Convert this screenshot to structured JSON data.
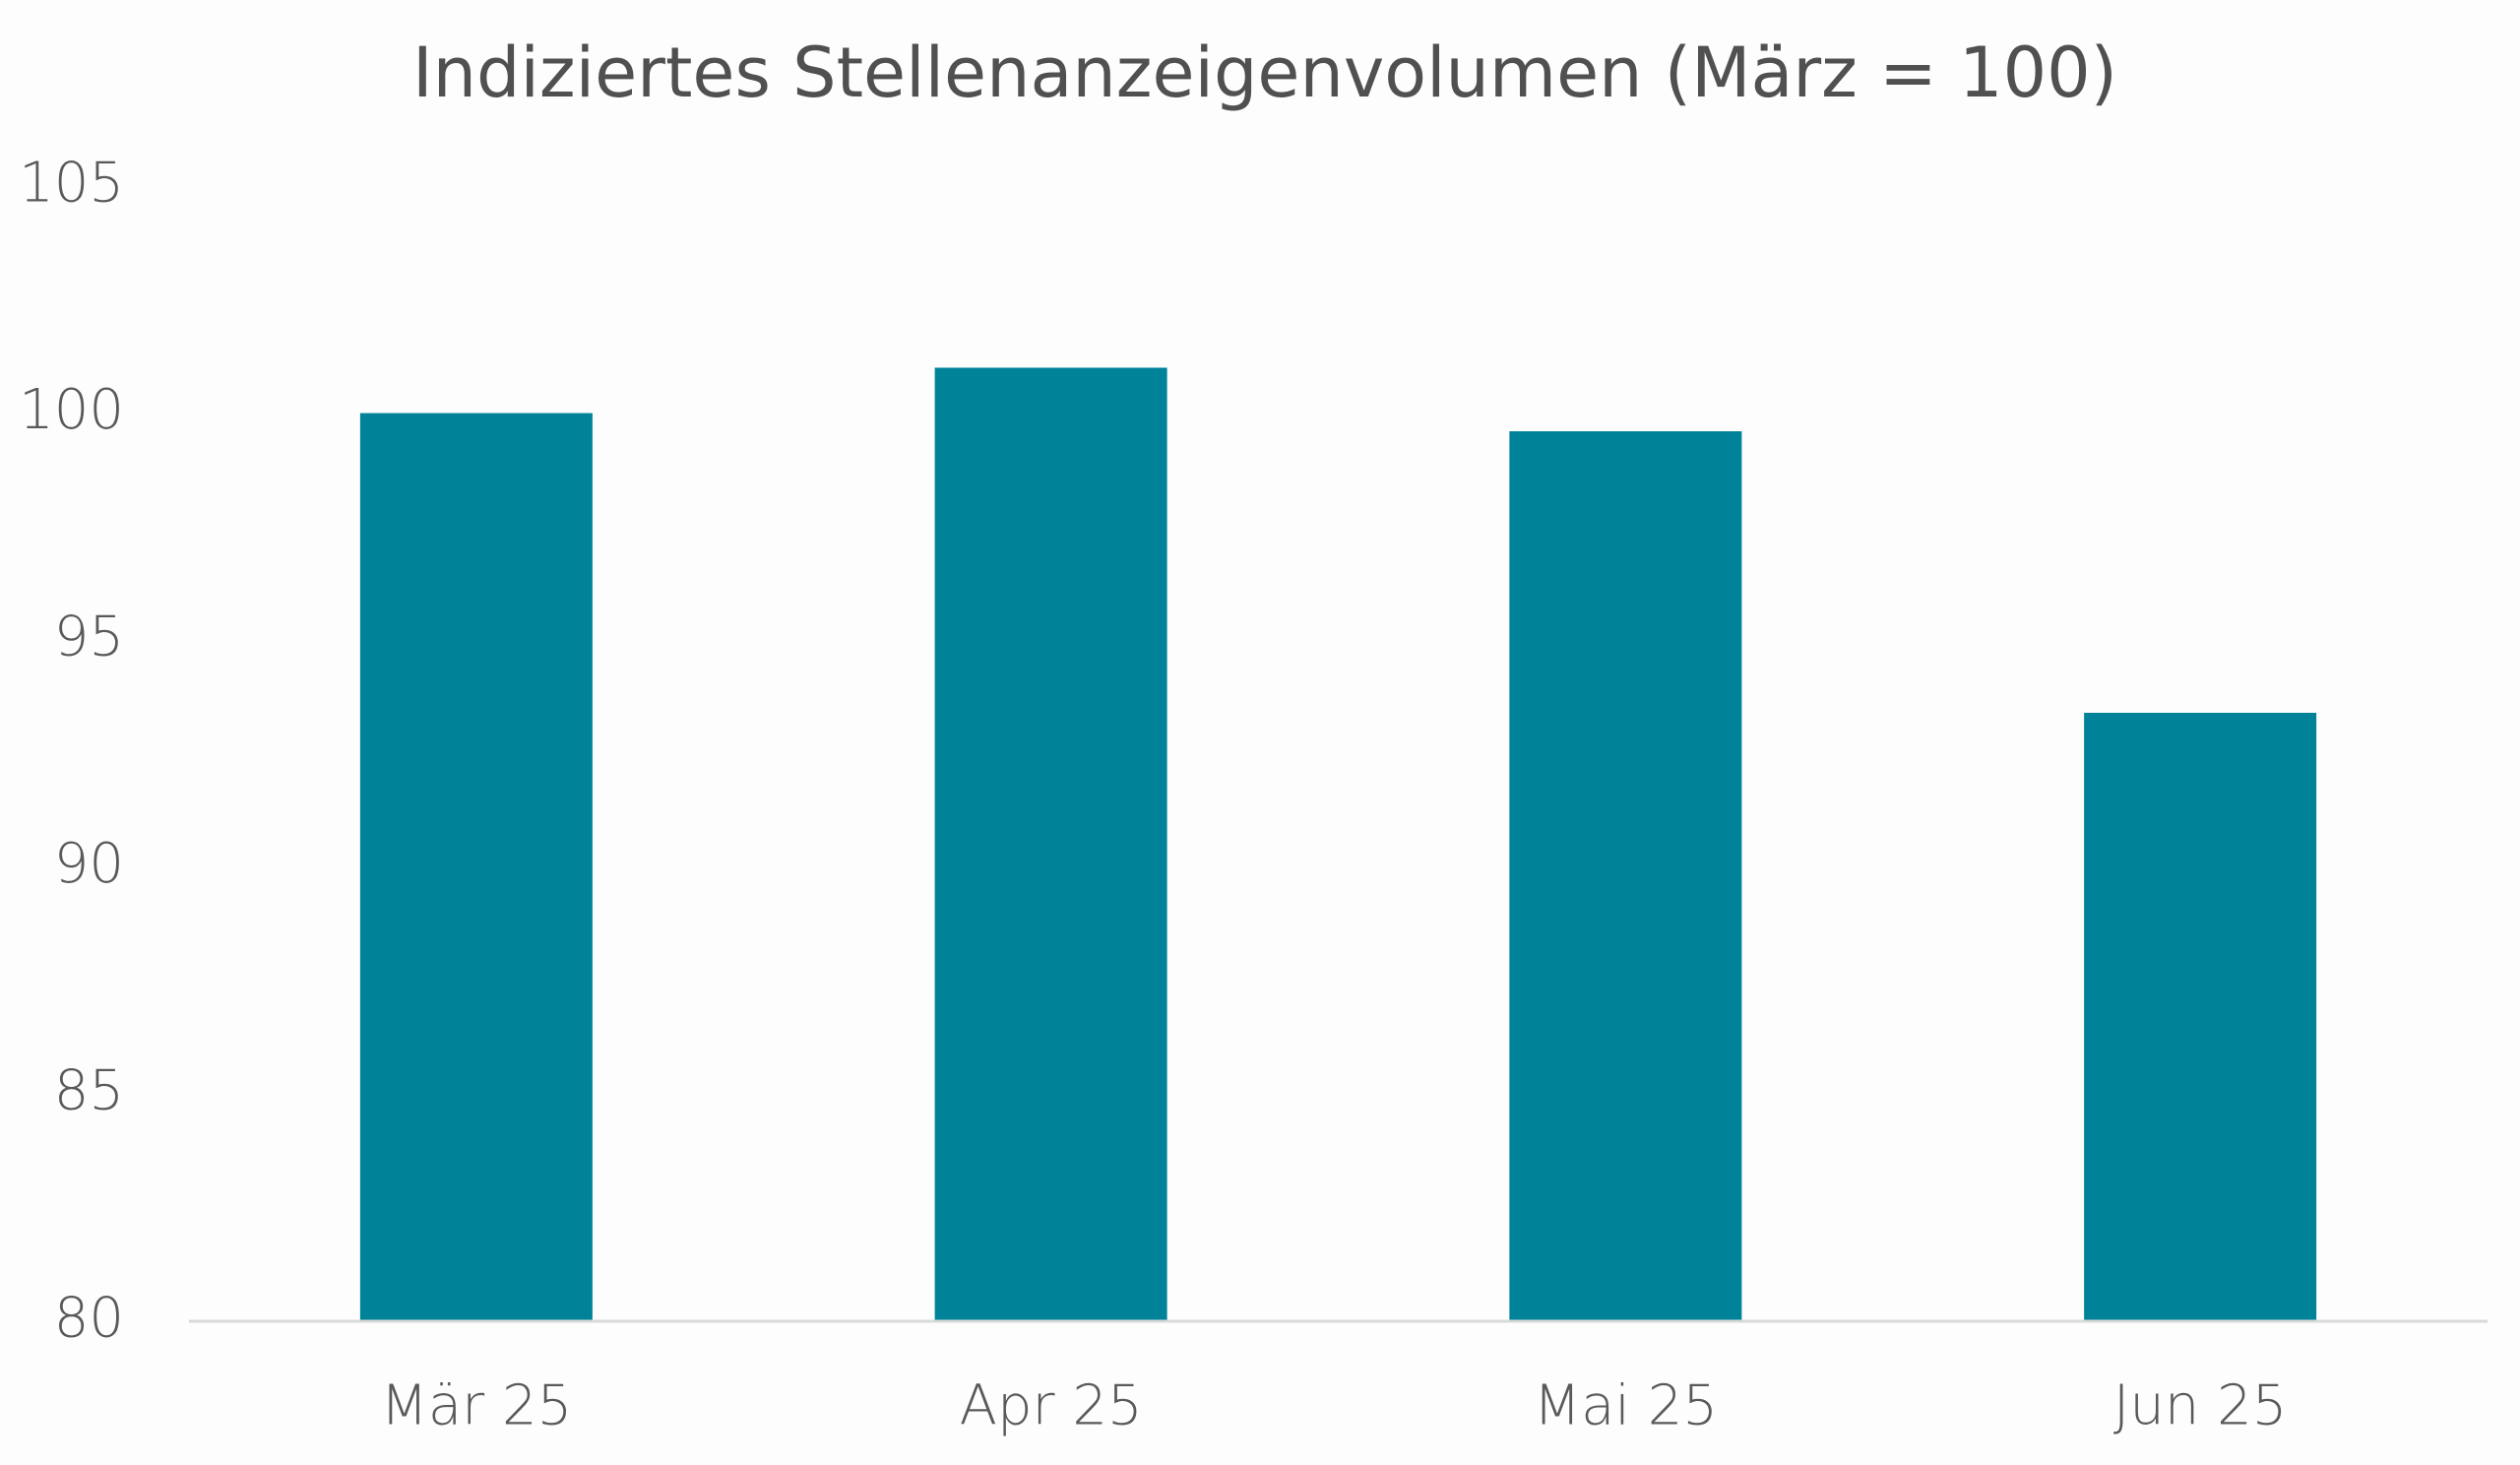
{
  "chart_data": {
    "type": "bar",
    "title": "Indiziertes Stellenanzeigenvolumen (März = 100)",
    "categories": [
      "Mär 25",
      "Apr 25",
      "Mai 25",
      "Jun 25"
    ],
    "values": [
      100,
      101,
      99.6,
      93.4
    ],
    "color": "#008299",
    "ylim": [
      80,
      105
    ],
    "yticks": [
      80,
      85,
      90,
      95,
      100,
      105
    ],
    "grid": false
  }
}
